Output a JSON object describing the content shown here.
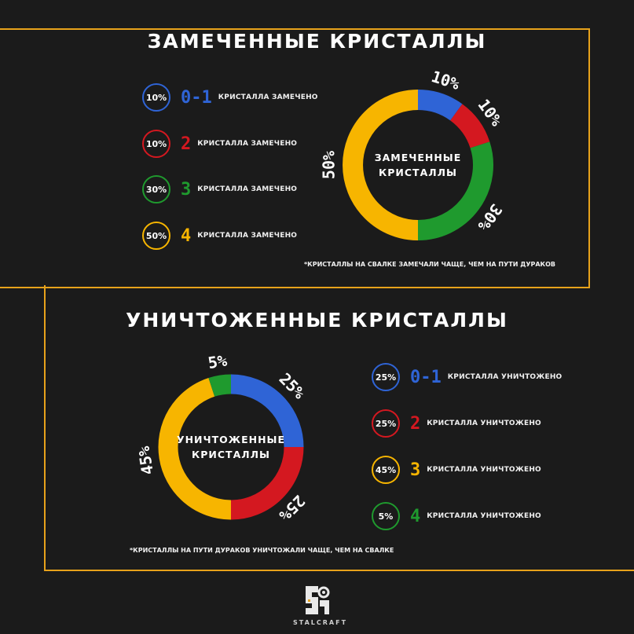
{
  "colors": {
    "accent": "#e7a21b",
    "blue": "#2f64d6",
    "red": "#d41820",
    "green": "#1f9a2e",
    "yellow": "#f7b500",
    "background": "#1b1b1b"
  },
  "section1": {
    "title": "ЗАМЕЧЕННЫЕ КРИСТАЛЛЫ",
    "center_label_line1": "ЗАМЕЧЕННЫЕ",
    "center_label_line2": "КРИСТАЛЛЫ",
    "note": "*КРИСТАЛЛЫ НА СВАЛКЕ ЗАМЕЧАЛИ ЧАЩЕ, ЧЕМ НА ПУТИ ДУРАКОВ",
    "legend": [
      {
        "percent": "10%",
        "count": "0-1",
        "text": "КРИСТАЛЛА ЗАМЕЧЕНО",
        "color": "#2f64d6"
      },
      {
        "percent": "10%",
        "count": "2",
        "text": "КРИСТАЛЛА ЗАМЕЧЕНО",
        "color": "#d41820"
      },
      {
        "percent": "30%",
        "count": "3",
        "text": "КРИСТАЛЛА ЗАМЕЧЕНО",
        "color": "#1f9a2e"
      },
      {
        "percent": "50%",
        "count": "4",
        "text": "КРИСТАЛЛА ЗАМЕЧЕНО",
        "color": "#f7b500"
      }
    ]
  },
  "section2": {
    "title": "УНИЧТОЖЕННЫЕ КРИСТАЛЛЫ",
    "center_label_line1": "УНИЧТОЖЕННЫЕ",
    "center_label_line2": "КРИСТАЛЛЫ",
    "note": "*КРИСТАЛЛЫ НА ПУТИ ДУРАКОВ УНИЧТОЖАЛИ ЧАЩЕ, ЧЕМ НА СВАЛКЕ",
    "legend": [
      {
        "percent": "25%",
        "count": "0-1",
        "text": "КРИСТАЛЛА УНИЧТОЖЕНО",
        "color": "#2f64d6"
      },
      {
        "percent": "25%",
        "count": "2",
        "text": "КРИСТАЛЛА УНИЧТОЖЕНО",
        "color": "#d41820"
      },
      {
        "percent": "45%",
        "count": "3",
        "text": "КРИСТАЛЛА УНИЧТОЖЕНО",
        "color": "#f7b500"
      },
      {
        "percent": "5%",
        "count": "4",
        "text": "КРИСТАЛЛА УНИЧТОЖЕНО",
        "color": "#1f9a2e"
      }
    ]
  },
  "logo": {
    "caption": "STALCRAFT",
    "icon": "stalcraft-logo-icon"
  },
  "chart_data": [
    {
      "type": "pie",
      "title": "ЗАМЕЧЕННЫЕ КРИСТАЛЛЫ",
      "categories": [
        "0-1",
        "2",
        "3",
        "4"
      ],
      "values": [
        10,
        10,
        30,
        50
      ],
      "labels": [
        "10%",
        "10%",
        "30%",
        "50%"
      ],
      "colors": [
        "#2f64d6",
        "#d41820",
        "#1f9a2e",
        "#f7b500"
      ],
      "donut": true
    },
    {
      "type": "pie",
      "title": "УНИЧТОЖЕННЫЕ КРИСТАЛЛЫ",
      "categories": [
        "0-1",
        "2",
        "3",
        "4"
      ],
      "values": [
        25,
        25,
        45,
        5
      ],
      "labels": [
        "25%",
        "25%",
        "45%",
        "5%"
      ],
      "colors": [
        "#2f64d6",
        "#d41820",
        "#f7b500",
        "#1f9a2e"
      ],
      "donut": true
    }
  ]
}
